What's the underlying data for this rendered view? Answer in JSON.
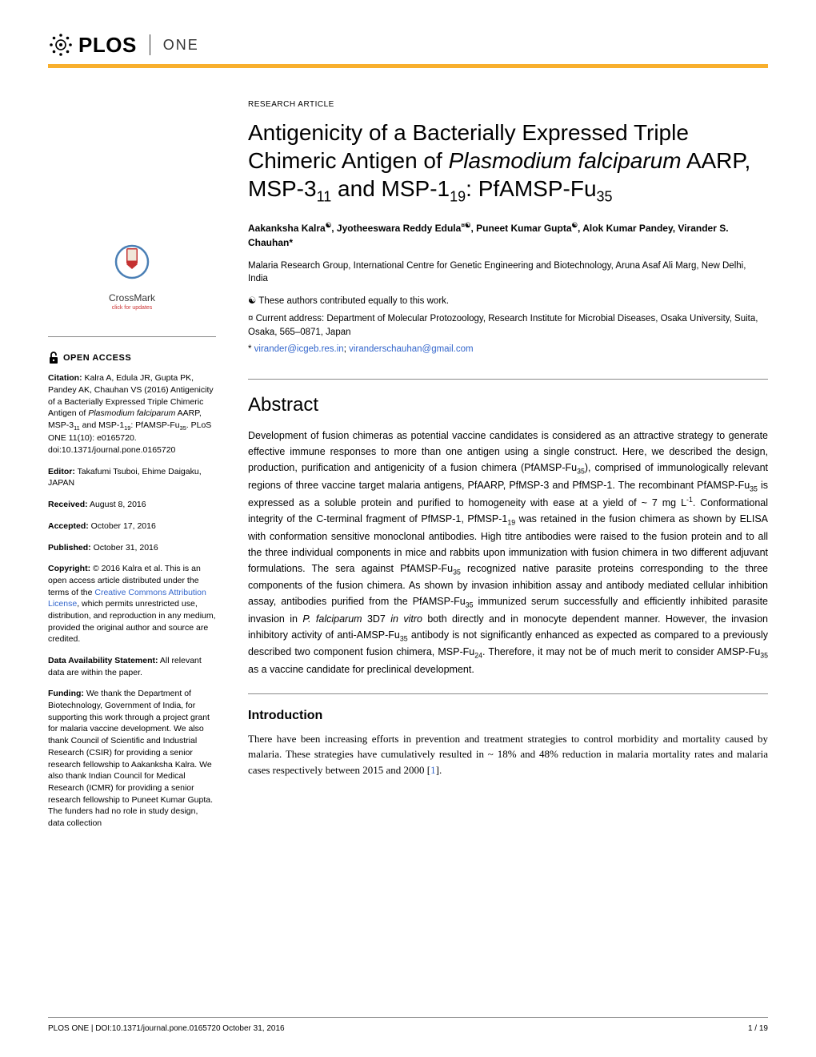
{
  "header": {
    "brand_main": "PLOS",
    "brand_sub": "ONE"
  },
  "colors": {
    "accent_bar": "#f8af2d",
    "link": "#3366cc",
    "text": "#000000"
  },
  "article": {
    "type_label": "RESEARCH ARTICLE",
    "title_html": "Antigenicity of a Bacterially Expressed Triple Chimeric Antigen of <i>Plasmodium falciparum</i> AARP, MSP-3<sub>11</sub> and MSP-1<sub>19</sub>: PfAMSP-Fu<sub>35</sub>",
    "authors_html": "Aakanksha Kalra<sup>☯</sup>, Jyotheeswara Reddy Edula<sup>¤☯</sup>, Puneet Kumar Gupta<sup>☯</sup>, Alok Kumar Pandey, Virander S. Chauhan*",
    "affiliation": "Malaria Research Group, International Centre for Genetic Engineering and Biotechnology, Aruna Asaf Ali Marg, New Delhi, India",
    "note_equal": "☯ These authors contributed equally to this work.",
    "note_current": "¤ Current address: Department of Molecular Protozoology, Research Institute for Microbial Diseases, Osaka University, Suita, Osaka, 565–0871, Japan",
    "note_corresponding_prefix": "* ",
    "email1": "virander@icgeb.res.in",
    "email_sep": "; ",
    "email2": "viranderschauhan@gmail.com"
  },
  "crossmark": {
    "label": "CrossMark",
    "sublabel": "click for updates"
  },
  "sidebar": {
    "open_access": "OPEN ACCESS",
    "citation_html": "<b>Citation:</b> Kalra A, Edula JR, Gupta PK, Pandey AK, Chauhan VS (2016) Antigenicity of a Bacterially Expressed Triple Chimeric Antigen of <i>Plasmodium falciparum</i> AARP, MSP-3<sub>11</sub> and MSP-1<sub>19</sub>: PfAMSP-Fu<sub>35</sub>. PLoS ONE 11(10): e0165720. doi:10.1371/journal.pone.0165720",
    "editor_html": "<b>Editor:</b> Takafumi Tsuboi, Ehime Daigaku, JAPAN",
    "received_html": "<b>Received:</b> August 8, 2016",
    "accepted_html": "<b>Accepted:</b> October 17, 2016",
    "published_html": "<b>Published:</b> October 31, 2016",
    "copyright_html": "<b>Copyright:</b> © 2016 Kalra et al. This is an open access article distributed under the terms of the <span class=\"meta-link\">Creative Commons Attribution License</span>, which permits unrestricted use, distribution, and reproduction in any medium, provided the original author and source are credited.",
    "data_html": "<b>Data Availability Statement:</b> All relevant data are within the paper.",
    "funding_html": "<b>Funding:</b> We thank the Department of Biotechnology, Government of India, for supporting this work through a project grant for malaria vaccine development. We also thank Council of Scientific and Industrial Research (CSIR) for providing a senior research fellowship to Aakanksha Kalra. We also thank Indian Council for Medical Research (ICMR) for providing a senior research fellowship to Puneet Kumar Gupta. The funders had no role in study design, data collection"
  },
  "abstract": {
    "heading": "Abstract",
    "text_html": "Development of fusion chimeras as potential vaccine candidates is considered as an attractive strategy to generate effective immune responses to more than one antigen using a single construct. Here, we described the design, production, purification and antigenicity of a fusion chimera (PfAMSP-Fu<sub>35</sub>), comprised of immunologically relevant regions of three vaccine target malaria antigens, PfAARP, PfMSP-3 and PfMSP-1. The recombinant PfAMSP-Fu<sub>35</sub> is expressed as a soluble protein and purified to homogeneity with ease at a yield of ~ 7 mg L<sup>-1</sup>. Conformational integrity of the C-terminal fragment of PfMSP-1, PfMSP-1<sub>19</sub> was retained in the fusion chimera as shown by ELISA with conformation sensitive monoclonal antibodies. High titre antibodies were raised to the fusion protein and to all the three individual components in mice and rabbits upon immunization with fusion chimera in two different adjuvant formulations. The sera against PfAMSP-Fu<sub>35</sub> recognized native parasite proteins corresponding to the three components of the fusion chimera. As shown by invasion inhibition assay and antibody mediated cellular inhibition assay, antibodies purified from the PfAMSP-Fu<sub>35</sub> immunized serum successfully and efficiently inhibited parasite invasion in <i>P. falciparum</i> 3D7 <i>in vitro</i> both directly and in monocyte dependent manner. However, the invasion inhibitory activity of anti-AMSP-Fu<sub>35</sub> antibody is not significantly enhanced as expected as compared to a previously described two component fusion chimera, MSP-Fu<sub>24</sub>. Therefore, it may not be of much merit to consider AMSP-Fu<sub>35</sub> as a vaccine candidate for preclinical development."
  },
  "introduction": {
    "heading": "Introduction",
    "text_html": "There have been increasing efforts in prevention and treatment strategies to control morbidity and mortality caused by malaria. These strategies have cumulatively resulted in ~ 18% and 48% reduction in malaria mortality rates and malaria cases respectively between 2015 and 2000 [<span class=\"ref-link\">1</span>]."
  },
  "footer": {
    "left": "PLOS ONE | DOI:10.1371/journal.pone.0165720    October 31, 2016",
    "right": "1 / 19"
  }
}
